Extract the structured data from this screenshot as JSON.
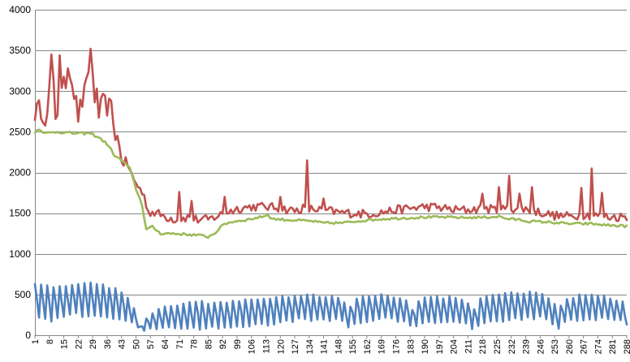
{
  "chart_data": {
    "type": "line",
    "title": "",
    "xlabel": "",
    "ylabel": "",
    "ylim": [
      0,
      4000
    ],
    "y_ticks": [
      0,
      500,
      1000,
      1500,
      2000,
      2500,
      3000,
      3500,
      4000
    ],
    "x_range": [
      1,
      288
    ],
    "x_tick_labels": [
      "1",
      "8",
      "15",
      "22",
      "29",
      "36",
      "43",
      "50",
      "57",
      "64",
      "71",
      "78",
      "85",
      "92",
      "99",
      "106",
      "113",
      "120",
      "127",
      "134",
      "141",
      "148",
      "155",
      "162",
      "169",
      "176",
      "183",
      "190",
      "197",
      "204",
      "211",
      "218",
      "225",
      "232",
      "239",
      "246",
      "253",
      "260",
      "267",
      "274",
      "281",
      "288"
    ],
    "grid": "horizontal",
    "legend": "none",
    "series": [
      {
        "color": "#C0504D",
        "shape": "noisy",
        "keypoints": [
          [
            1,
            2750
          ],
          [
            4,
            2780
          ],
          [
            7,
            2650
          ],
          [
            9,
            3450
          ],
          [
            11,
            2700
          ],
          [
            15,
            3050
          ],
          [
            18,
            3280
          ],
          [
            22,
            2700
          ],
          [
            26,
            3050
          ],
          [
            28,
            3520
          ],
          [
            31,
            2650
          ],
          [
            34,
            2850
          ],
          [
            38,
            2780
          ],
          [
            40,
            2500
          ],
          [
            43,
            2200
          ],
          [
            46,
            2100
          ],
          [
            49,
            1900
          ],
          [
            52,
            1800
          ],
          [
            54,
            1700
          ],
          [
            56,
            1520
          ],
          [
            60,
            1500
          ],
          [
            65,
            1450
          ],
          [
            70,
            1420
          ],
          [
            75,
            1450
          ],
          [
            80,
            1420
          ],
          [
            85,
            1420
          ],
          [
            90,
            1470
          ],
          [
            95,
            1520
          ],
          [
            100,
            1560
          ],
          [
            106,
            1580
          ],
          [
            113,
            1580
          ],
          [
            120,
            1560
          ],
          [
            127,
            1530
          ],
          [
            131,
            1560
          ],
          [
            134,
            1550
          ],
          [
            141,
            1540
          ],
          [
            148,
            1510
          ],
          [
            155,
            1500
          ],
          [
            162,
            1490
          ],
          [
            169,
            1510
          ],
          [
            176,
            1540
          ],
          [
            183,
            1560
          ],
          [
            190,
            1580
          ],
          [
            197,
            1570
          ],
          [
            204,
            1540
          ],
          [
            211,
            1540
          ],
          [
            218,
            1560
          ],
          [
            225,
            1540
          ],
          [
            232,
            1560
          ],
          [
            239,
            1550
          ],
          [
            246,
            1510
          ],
          [
            253,
            1470
          ],
          [
            260,
            1460
          ],
          [
            267,
            1480
          ],
          [
            274,
            1470
          ],
          [
            281,
            1450
          ],
          [
            288,
            1460
          ]
        ],
        "spikes": [
          [
            9,
            3450
          ],
          [
            13,
            3440
          ],
          [
            17,
            3280
          ],
          [
            28,
            3520
          ],
          [
            31,
            3030
          ],
          [
            71,
            1760
          ],
          [
            77,
            1650
          ],
          [
            93,
            1700
          ],
          [
            120,
            1700
          ],
          [
            133,
            2150
          ],
          [
            141,
            1680
          ],
          [
            218,
            1740
          ],
          [
            226,
            1820
          ],
          [
            231,
            1960
          ],
          [
            236,
            1740
          ],
          [
            242,
            1820
          ],
          [
            266,
            1810
          ],
          [
            271,
            2050
          ],
          [
            276,
            1750
          ]
        ]
      },
      {
        "color": "#9BBB59",
        "shape": "smooth",
        "keypoints": [
          [
            1,
            2490
          ],
          [
            3,
            2540
          ],
          [
            6,
            2480
          ],
          [
            12,
            2500
          ],
          [
            20,
            2480
          ],
          [
            28,
            2480
          ],
          [
            32,
            2430
          ],
          [
            36,
            2350
          ],
          [
            40,
            2200
          ],
          [
            44,
            2130
          ],
          [
            47,
            2050
          ],
          [
            50,
            1800
          ],
          [
            53,
            1600
          ],
          [
            55,
            1300
          ],
          [
            58,
            1330
          ],
          [
            62,
            1250
          ],
          [
            68,
            1250
          ],
          [
            74,
            1240
          ],
          [
            80,
            1230
          ],
          [
            85,
            1210
          ],
          [
            88,
            1250
          ],
          [
            90,
            1300
          ],
          [
            93,
            1370
          ],
          [
            98,
            1400
          ],
          [
            104,
            1420
          ],
          [
            110,
            1450
          ],
          [
            114,
            1480
          ],
          [
            116,
            1430
          ],
          [
            122,
            1420
          ],
          [
            130,
            1410
          ],
          [
            136,
            1400
          ],
          [
            140,
            1380
          ],
          [
            150,
            1380
          ],
          [
            160,
            1410
          ],
          [
            170,
            1430
          ],
          [
            180,
            1440
          ],
          [
            190,
            1450
          ],
          [
            200,
            1450
          ],
          [
            210,
            1445
          ],
          [
            220,
            1450
          ],
          [
            226,
            1460
          ],
          [
            230,
            1430
          ],
          [
            236,
            1420
          ],
          [
            240,
            1400
          ],
          [
            250,
            1390
          ],
          [
            260,
            1370
          ],
          [
            270,
            1370
          ],
          [
            280,
            1350
          ],
          [
            288,
            1340
          ]
        ]
      },
      {
        "color": "#4F81BD",
        "shape": "oscillating",
        "period": 3,
        "keypoints": [
          [
            1,
            620,
            220
          ],
          [
            10,
            580,
            180
          ],
          [
            20,
            600,
            260
          ],
          [
            28,
            650,
            220
          ],
          [
            34,
            620,
            240
          ],
          [
            40,
            560,
            200
          ],
          [
            46,
            480,
            180
          ],
          [
            50,
            260,
            120
          ],
          [
            52,
            120,
            40
          ],
          [
            56,
            260,
            60
          ],
          [
            62,
            320,
            80
          ],
          [
            68,
            370,
            80
          ],
          [
            74,
            390,
            90
          ],
          [
            80,
            430,
            70
          ],
          [
            86,
            390,
            110
          ],
          [
            90,
            410,
            100
          ],
          [
            96,
            420,
            100
          ],
          [
            104,
            440,
            120
          ],
          [
            112,
            460,
            120
          ],
          [
            120,
            470,
            160
          ],
          [
            124,
            480,
            170
          ],
          [
            130,
            500,
            200
          ],
          [
            138,
            480,
            180
          ],
          [
            146,
            470,
            190
          ],
          [
            150,
            480,
            180
          ],
          [
            153,
            300,
            80
          ],
          [
            156,
            450,
            150
          ],
          [
            162,
            470,
            180
          ],
          [
            170,
            490,
            210
          ],
          [
            176,
            460,
            180
          ],
          [
            180,
            450,
            160
          ],
          [
            184,
            330,
            110
          ],
          [
            188,
            450,
            150
          ],
          [
            196,
            460,
            150
          ],
          [
            204,
            470,
            160
          ],
          [
            210,
            420,
            140
          ],
          [
            214,
            330,
            70
          ],
          [
            218,
            470,
            160
          ],
          [
            226,
            490,
            180
          ],
          [
            234,
            520,
            200
          ],
          [
            240,
            520,
            200
          ],
          [
            246,
            520,
            210
          ],
          [
            252,
            430,
            150
          ],
          [
            255,
            300,
            90
          ],
          [
            258,
            460,
            160
          ],
          [
            266,
            490,
            200
          ],
          [
            272,
            500,
            200
          ],
          [
            280,
            450,
            200
          ],
          [
            285,
            420,
            180
          ],
          [
            288,
            350,
            120
          ]
        ]
      }
    ]
  }
}
